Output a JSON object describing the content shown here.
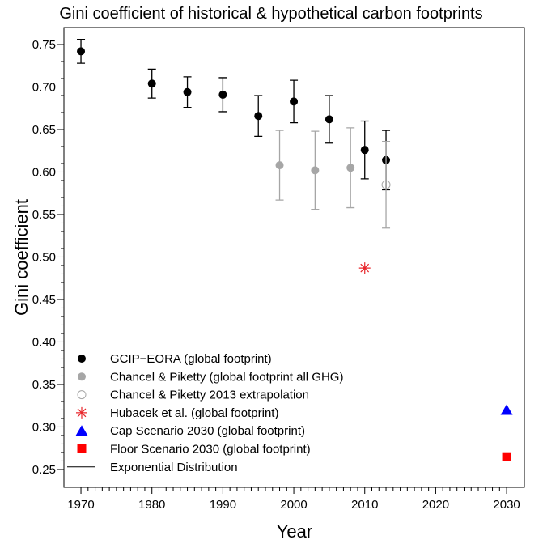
{
  "chart_data": {
    "type": "scatter",
    "title": "Gini coefficient of historical & hypothetical carbon footprints",
    "x_label": "Year",
    "y_label": "Gini coefficient",
    "xlim": [
      1967.6,
      2032.5
    ],
    "ylim": [
      0.229,
      0.77
    ],
    "xticks": [
      1970,
      1980,
      1990,
      2000,
      2010,
      2020,
      2030
    ],
    "yticks": [
      0.25,
      {
        "value": 0.3,
        "label": "0.30"
      },
      0.35,
      {
        "value": 0.4,
        "label": "0.40"
      },
      0.45,
      {
        "value": 0.5,
        "label": "0.50"
      },
      0.55,
      {
        "value": 0.6,
        "label": "0.60"
      },
      0.65,
      {
        "value": 0.7,
        "label": "0.70"
      },
      0.75
    ],
    "series": [
      {
        "name": "GCIP−EORA (global footprint)",
        "color": "#000000",
        "marker": "circle",
        "x": [
          1970,
          1980,
          1985,
          1990,
          1995,
          2000,
          2005,
          2010,
          2013
        ],
        "values": [
          0.742,
          0.704,
          0.694,
          0.691,
          0.666,
          0.683,
          0.662,
          0.626,
          0.614
        ],
        "errors": [
          0.014,
          0.017,
          0.018,
          0.02,
          0.024,
          0.025,
          0.028,
          0.034,
          0.035
        ]
      },
      {
        "name": "Chancel & Piketty (global footprint all GHG)",
        "color": "#a6a6a6",
        "marker": "circle",
        "x": [
          1998,
          2003,
          2008
        ],
        "values": [
          0.608,
          0.602,
          0.605
        ],
        "errors": [
          0.041,
          0.046,
          0.047
        ]
      },
      {
        "name": "Chancel & Piketty 2013 extrapolation",
        "color": "#a6a6a6",
        "marker": "open-circle",
        "x": [
          2013
        ],
        "values": [
          0.585
        ],
        "errors": [
          0.051
        ]
      },
      {
        "name": "Hubacek et al. (global footprint)",
        "color": "#e8262b",
        "marker": "asterisk",
        "x": [
          2010
        ],
        "values": [
          0.487
        ]
      },
      {
        "name": "Cap Scenario 2030 (global footprint)",
        "color": "#0000ff",
        "marker": "triangle",
        "x": [
          2030
        ],
        "values": [
          0.32
        ]
      },
      {
        "name": "Floor Scenario 2030 (global footprint)",
        "color": "#ff0000",
        "marker": "square",
        "x": [
          2030
        ],
        "values": [
          0.265
        ]
      },
      {
        "name": "Exponential Distribution",
        "color": "#000000",
        "marker": "hline",
        "values": [
          0.5
        ]
      }
    ]
  }
}
